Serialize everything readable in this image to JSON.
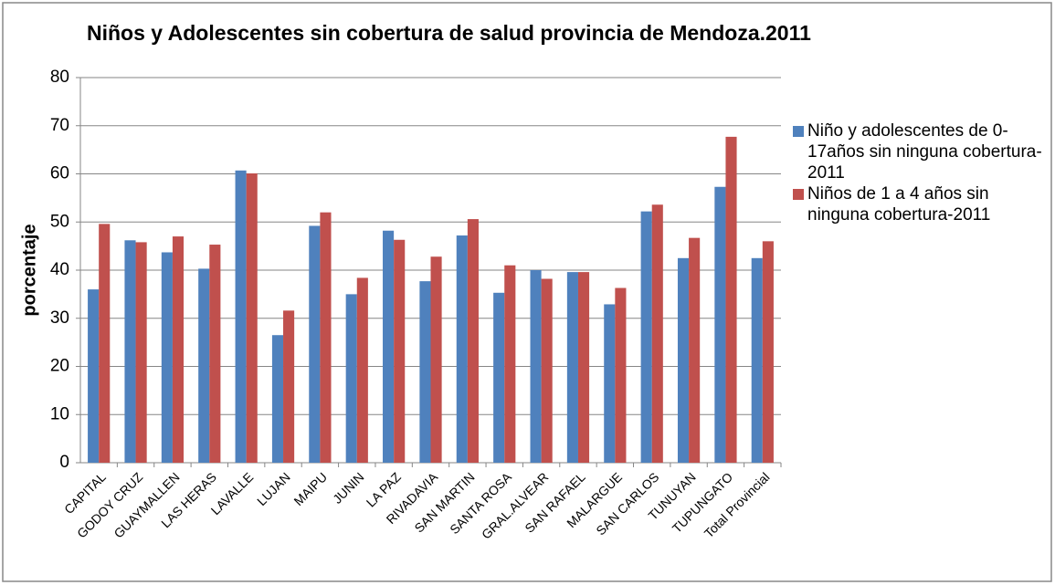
{
  "chart_data": {
    "type": "bar",
    "title": "Niños y Adolescentes sin cobertura de salud provincia de Mendoza.2011",
    "y_label": "porcentaje",
    "categories": [
      "CAPITAL",
      "GODOY CRUZ",
      "GUAYMALLEN",
      "LAS HERAS",
      "LAVALLE",
      "LUJAN",
      "MAIPU",
      "JUNIN",
      "LA PAZ",
      "RIVADAVIA",
      "SAN MARTIN",
      "SANTA ROSA",
      "GRAL.ALVEAR",
      "SAN RAFAEL",
      "MALARGUE",
      "SAN CARLOS",
      "TUNUYAN",
      "TUPUNGATO",
      "Total Provincial"
    ],
    "series": [
      {
        "name": "Niño y adolescentes de 0-17años sin ninguna cobertura-2011",
        "color": "#4f81bd",
        "values": [
          36,
          46.2,
          43.7,
          40.3,
          60.7,
          26.5,
          49.2,
          35,
          48.2,
          37.7,
          47.2,
          35.3,
          40,
          39.6,
          32.9,
          52.2,
          42.5,
          57.3,
          42.5
        ]
      },
      {
        "name": "Niños de 1 a 4 años sin ninguna cobertura-2011",
        "color": "#c0504d",
        "values": [
          49.6,
          45.8,
          47,
          45.3,
          60.1,
          31.6,
          52,
          38.4,
          46.3,
          42.8,
          50.6,
          41,
          38.2,
          39.6,
          36.3,
          53.6,
          46.7,
          67.7,
          46
        ]
      }
    ],
    "ylim": [
      0,
      80
    ],
    "yticks": [
      0,
      10,
      20,
      30,
      40,
      50,
      60,
      70,
      80
    ],
    "grid": true,
    "legend": "right"
  }
}
